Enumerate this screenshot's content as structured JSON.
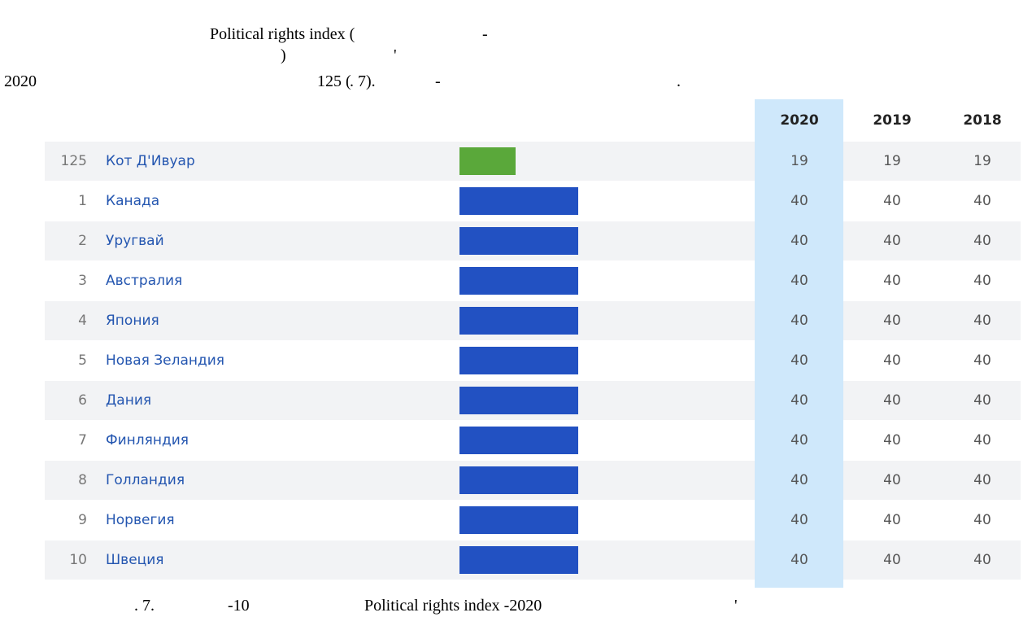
{
  "intro": {
    "fragments": [
      "Political rights index (",
      "-",
      ")",
      "'",
      "2020",
      "125 (",
      ". 7).",
      "-",
      "."
    ]
  },
  "table": {
    "columns": [
      "2020",
      "2019",
      "2018"
    ],
    "highlight_color": "#5aa83a",
    "bar_color": "#2251c2",
    "rows": [
      {
        "rank": 125,
        "country": "Кот Д'Ивуар",
        "values": [
          19,
          19,
          19
        ]
      },
      {
        "rank": 1,
        "country": "Канада",
        "values": [
          40,
          40,
          40
        ]
      },
      {
        "rank": 2,
        "country": "Уругвай",
        "values": [
          40,
          40,
          40
        ]
      },
      {
        "rank": 3,
        "country": "Австралия",
        "values": [
          40,
          40,
          40
        ]
      },
      {
        "rank": 4,
        "country": "Япония",
        "values": [
          40,
          40,
          40
        ]
      },
      {
        "rank": 5,
        "country": "Новая Зеландия",
        "values": [
          40,
          40,
          40
        ]
      },
      {
        "rank": 6,
        "country": "Дания",
        "values": [
          40,
          40,
          40
        ]
      },
      {
        "rank": 7,
        "country": "Финляндия",
        "values": [
          40,
          40,
          40
        ]
      },
      {
        "rank": 8,
        "country": "Голландия",
        "values": [
          40,
          40,
          40
        ]
      },
      {
        "rank": 9,
        "country": "Норвегия",
        "values": [
          40,
          40,
          40
        ]
      },
      {
        "rank": 10,
        "country": "Швеция",
        "values": [
          40,
          40,
          40
        ]
      }
    ]
  },
  "caption": {
    "fragments": [
      ". 7.",
      "-10",
      "Political rights index -2020",
      "'"
    ]
  }
}
